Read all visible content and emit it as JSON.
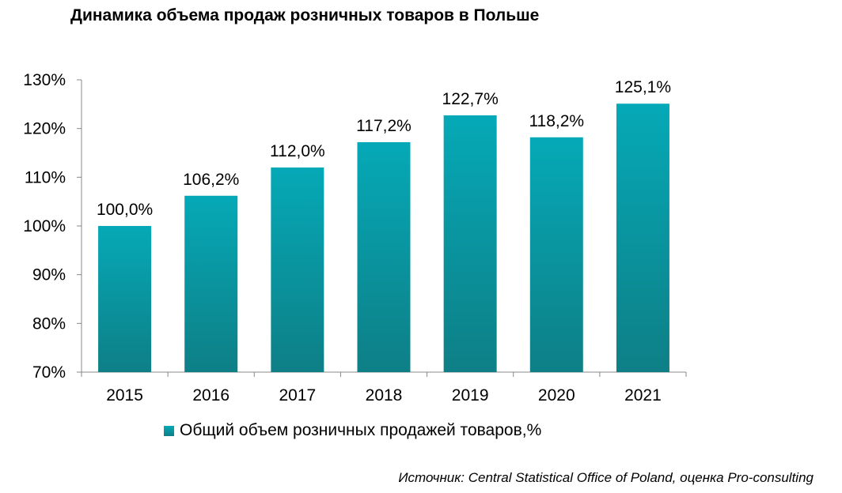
{
  "title": "Динамика объема продаж розничных товаров в Польше",
  "source": "Источник: Central Statistical Office of Poland, оценка Pro-consulting",
  "colors": {
    "bar_top": "#05A9B7",
    "bar_bottom": "#0E7F86",
    "axis": "#888888"
  },
  "chart_data": {
    "type": "bar",
    "categories": [
      "2015",
      "2016",
      "2017",
      "2018",
      "2019",
      "2020",
      "2021"
    ],
    "series": [
      {
        "name": "Общий объем розничных продажей товаров,%",
        "values": [
          100.0,
          106.2,
          112.0,
          117.2,
          122.7,
          118.2,
          125.1
        ],
        "data_labels": [
          "100,0%",
          "106,2%",
          "112,0%",
          "117,2%",
          "122,7%",
          "118,2%",
          "125,1%"
        ]
      }
    ],
    "ylim": [
      70,
      130
    ],
    "yticks": [
      70,
      80,
      90,
      100,
      110,
      120,
      130
    ],
    "ytick_labels": [
      "70%",
      "80%",
      "90%",
      "100%",
      "110%",
      "120%",
      "130%"
    ],
    "grid": false,
    "legend_position": "bottom"
  }
}
